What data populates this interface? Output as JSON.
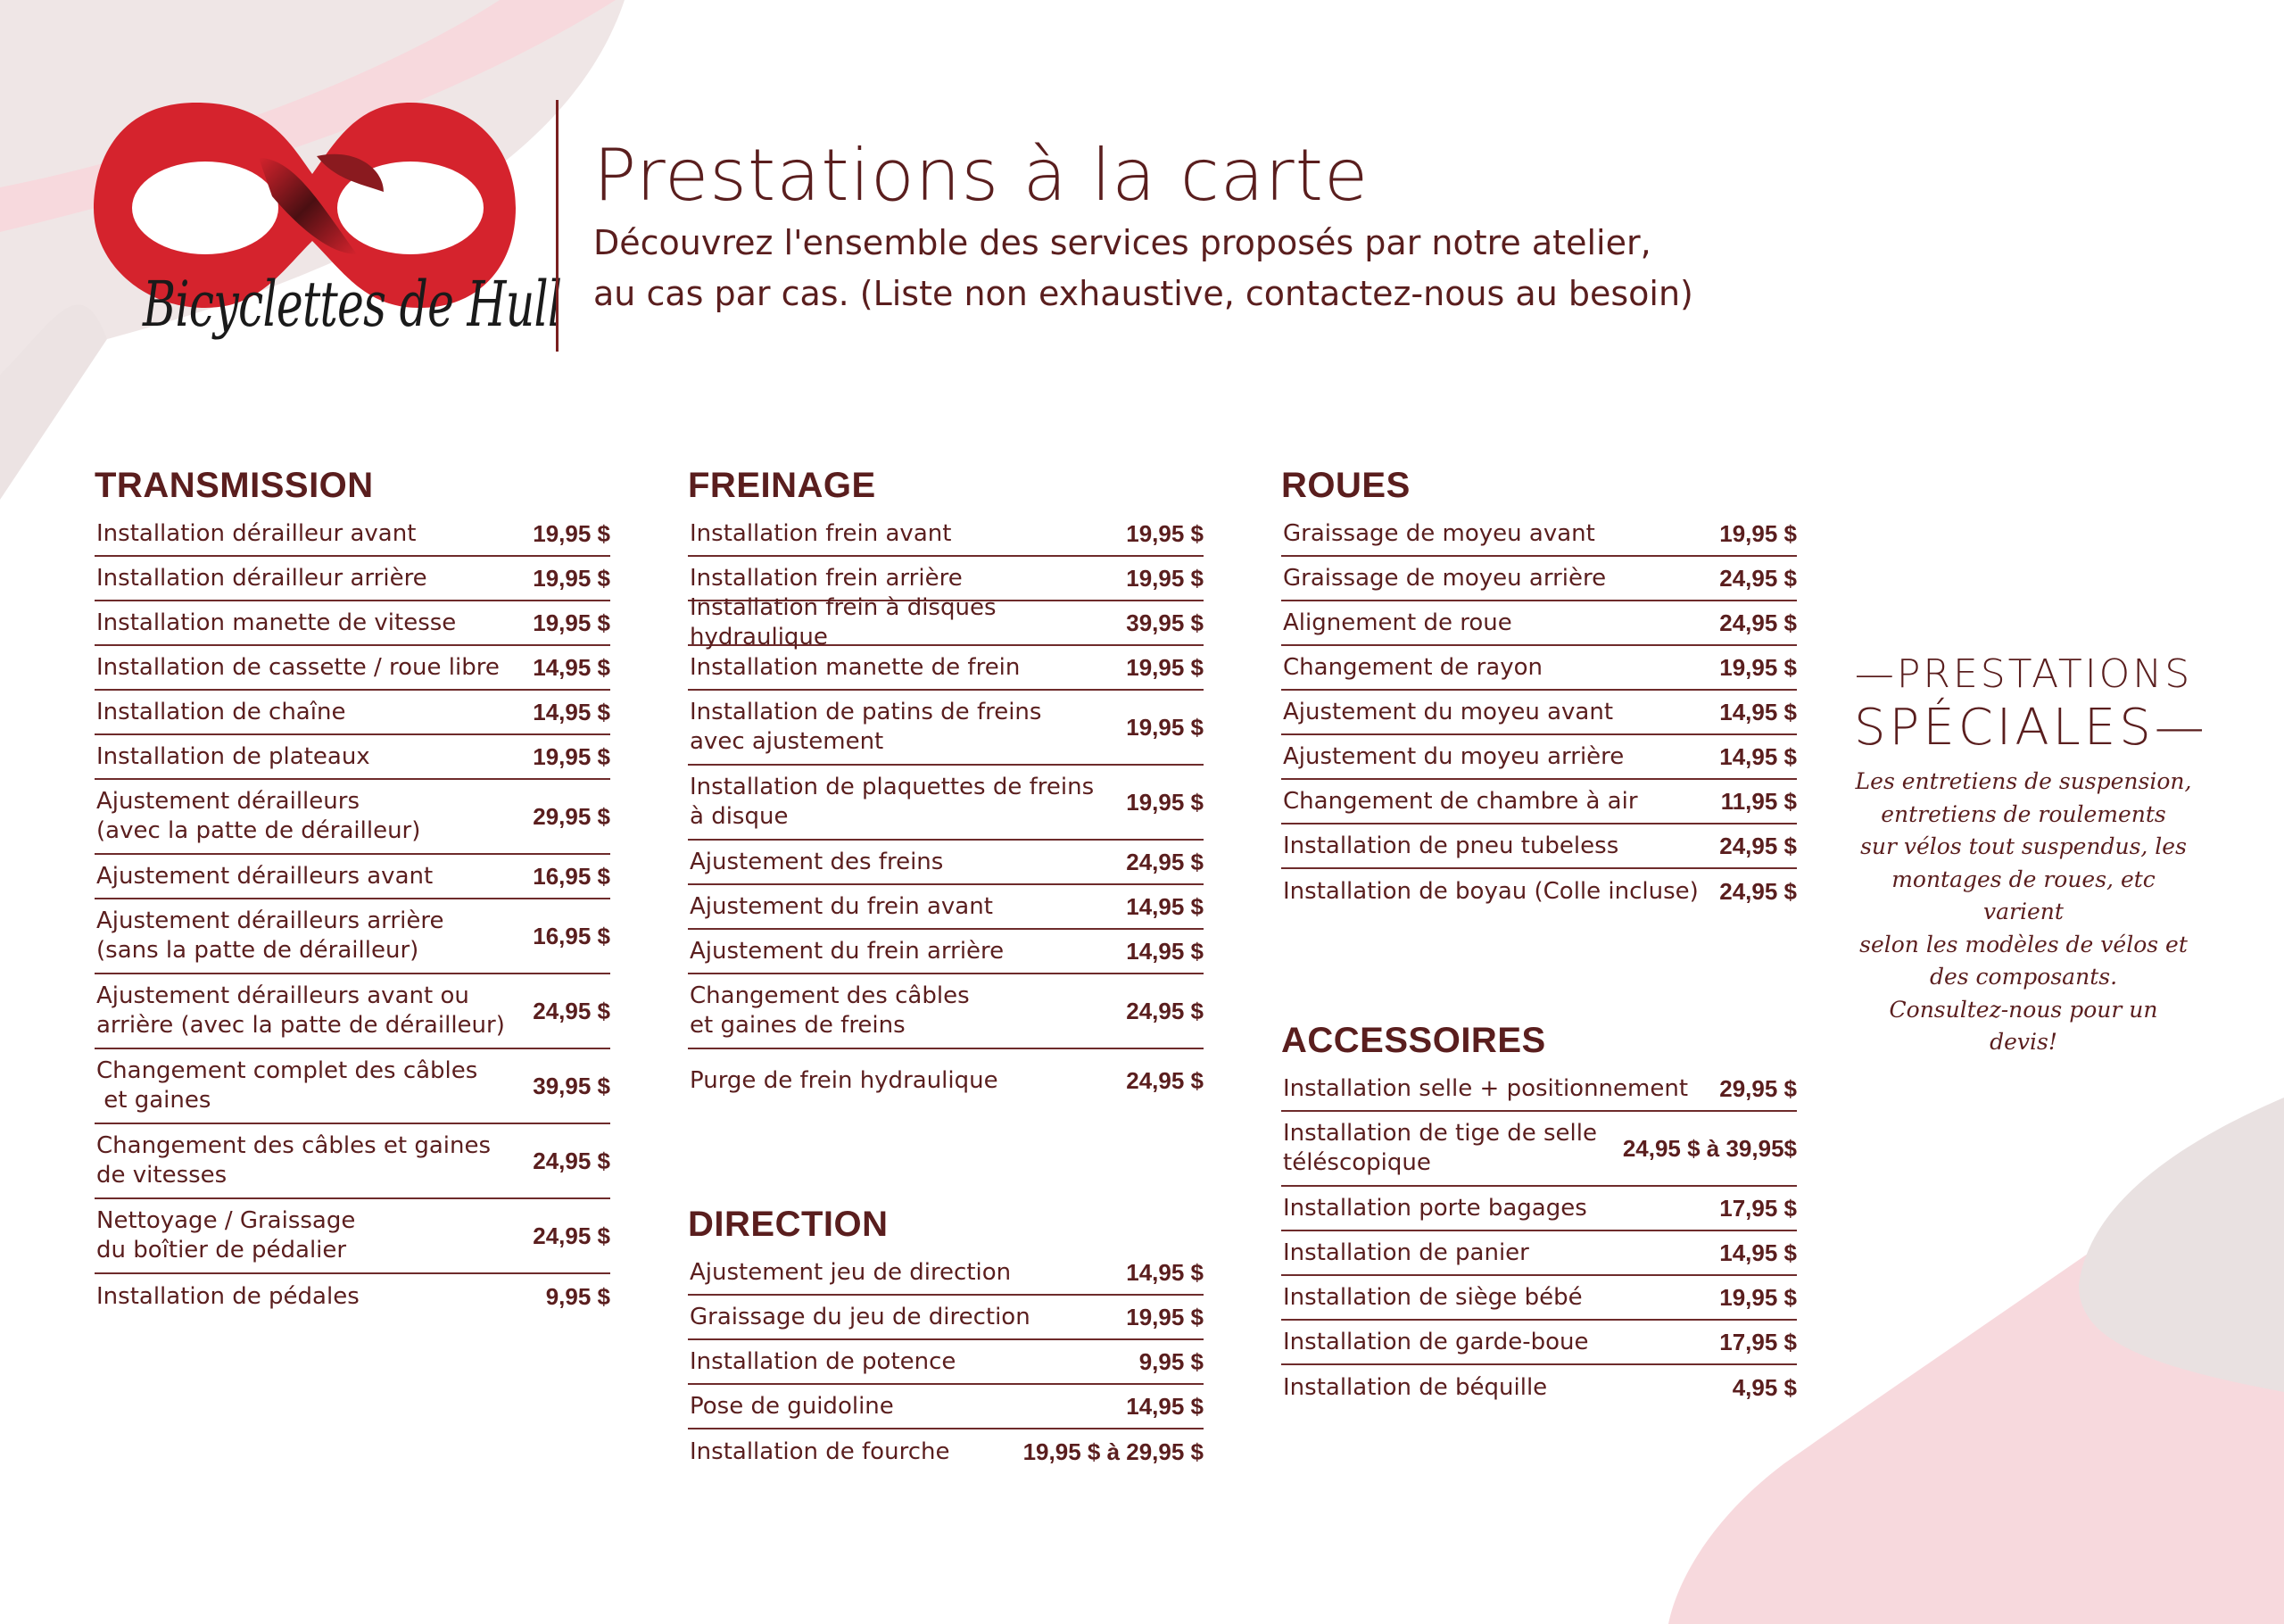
{
  "brand": {
    "name": "Bicyclettes de Hull",
    "colors": {
      "red": "#d5232d",
      "dark_red": "#5a1e1e",
      "pink": "#f6d6da",
      "grey": "#e6dcdc"
    }
  },
  "header": {
    "title": "Prestations à la carte",
    "subtitle_line1": "Découvrez l'ensemble des services proposés par notre atelier,",
    "subtitle_line2": "au cas par cas. (Liste non exhaustive, contactez-nous au besoin)"
  },
  "sections": {
    "transmission": {
      "title": "TRANSMISSION",
      "items": [
        {
          "label": "Installation dérailleur avant",
          "price": "19,95 $"
        },
        {
          "label": "Installation dérailleur arrière",
          "price": "19,95 $"
        },
        {
          "label": "Installation manette de vitesse",
          "price": "19,95 $"
        },
        {
          "label": "Installation de cassette / roue libre",
          "price": "14,95 $"
        },
        {
          "label": "Installation de chaîne",
          "price": "14,95 $"
        },
        {
          "label": "Installation de plateaux",
          "price": "19,95 $"
        },
        {
          "label": "Ajustement dérailleurs",
          "label2": "(avec la patte de dérailleur)",
          "price": "29,95 $"
        },
        {
          "label": "Ajustement dérailleurs avant",
          "price": "16,95 $"
        },
        {
          "label": "Ajustement dérailleurs arrière",
          "label2": "(sans la patte de dérailleur)",
          "price": "16,95 $"
        },
        {
          "label": "Ajustement dérailleurs avant ou",
          "label2": "arrière (avec la patte de dérailleur)",
          "price": "24,95 $"
        },
        {
          "label": "Changement complet des câbles",
          "label2": " et gaines",
          "price": "39,95 $"
        },
        {
          "label": "Changement des câbles et gaines",
          "label2": "de vitesses",
          "price": "24,95 $"
        },
        {
          "label": "Nettoyage / Graissage",
          "label2": "du boîtier de pédalier",
          "price": "24,95 $"
        },
        {
          "label": "Installation de pédales",
          "price": "9,95 $"
        }
      ]
    },
    "freinage": {
      "title": "FREINAGE",
      "items": [
        {
          "label": "Installation frein avant",
          "price": "19,95 $"
        },
        {
          "label": "Installation frein arrière",
          "price": "19,95 $"
        },
        {
          "label": "Installation frein à disques hydraulique",
          "price": "39,95 $"
        },
        {
          "label": "Installation manette de frein",
          "price": "19,95 $"
        },
        {
          "label": "Installation de patins de freins",
          "label2": "avec ajustement",
          "price": "19,95 $"
        },
        {
          "label": "Installation de plaquettes de freins",
          "label2": "à disque",
          "price": "19,95 $"
        },
        {
          "label": "Ajustement des freins",
          "price": "24,95 $"
        },
        {
          "label": "Ajustement du frein avant",
          "price": "14,95 $"
        },
        {
          "label": "Ajustement du frein arrière",
          "price": "14,95 $"
        },
        {
          "label": "Changement des câbles",
          "label2": "et gaines de freins",
          "price": "24,95 $"
        },
        {
          "label": "Purge de frein hydraulique",
          "price": "24,95 $"
        }
      ]
    },
    "direction": {
      "title": "DIRECTION",
      "items": [
        {
          "label": "Ajustement jeu de direction",
          "price": "14,95 $"
        },
        {
          "label": "Graissage du jeu de direction",
          "price": "19,95 $"
        },
        {
          "label": "Installation de potence",
          "price": "9,95 $"
        },
        {
          "label": "Pose de guidoline",
          "price": "14,95 $"
        },
        {
          "label": "Installation de fourche",
          "price": "19,95 $ à 29,95 $"
        }
      ]
    },
    "roues": {
      "title": "ROUES",
      "items": [
        {
          "label": "Graissage de moyeu avant",
          "price": "19,95 $"
        },
        {
          "label": "Graissage de moyeu arrière",
          "price": "24,95 $"
        },
        {
          "label": "Alignement de roue",
          "price": "24,95 $"
        },
        {
          "label": "Changement de rayon",
          "price": "19,95 $"
        },
        {
          "label": "Ajustement du moyeu avant",
          "price": "14,95 $"
        },
        {
          "label": "Ajustement du moyeu arrière",
          "price": "14,95 $"
        },
        {
          "label": "Changement de chambre à air",
          "price": "11,95 $"
        },
        {
          "label": "Installation de pneu tubeless",
          "price": "24,95 $"
        },
        {
          "label": "Installation de boyau (Colle incluse)",
          "price": "24,95 $"
        }
      ]
    },
    "accessoires": {
      "title": "ACCESSOIRES",
      "items": [
        {
          "label": "Installation selle + positionnement",
          "price": "29,95 $"
        },
        {
          "label": "Installation de tige de selle",
          "label2": "téléscopique",
          "price": "24,95 $ à 39,95$"
        },
        {
          "label": "Installation porte bagages",
          "price": "17,95 $"
        },
        {
          "label": "Installation de panier",
          "price": "14,95 $"
        },
        {
          "label": "Installation de siège bébé",
          "price": "19,95 $"
        },
        {
          "label": "Installation de garde-boue",
          "price": "17,95 $"
        },
        {
          "label": "Installation de béquille",
          "price": "4,95 $"
        }
      ]
    }
  },
  "special": {
    "title_line1": "PRESTATIONS",
    "title_line2": "SPÉCIALES",
    "text_lines": [
      "Les entretiens de suspension,",
      "entretiens de roulements",
      "sur vélos tout suspendus, les",
      "montages de roues, etc varient",
      "selon les modèles de vélos et",
      "des composants.",
      "Consultez-nous pour un devis!"
    ]
  }
}
